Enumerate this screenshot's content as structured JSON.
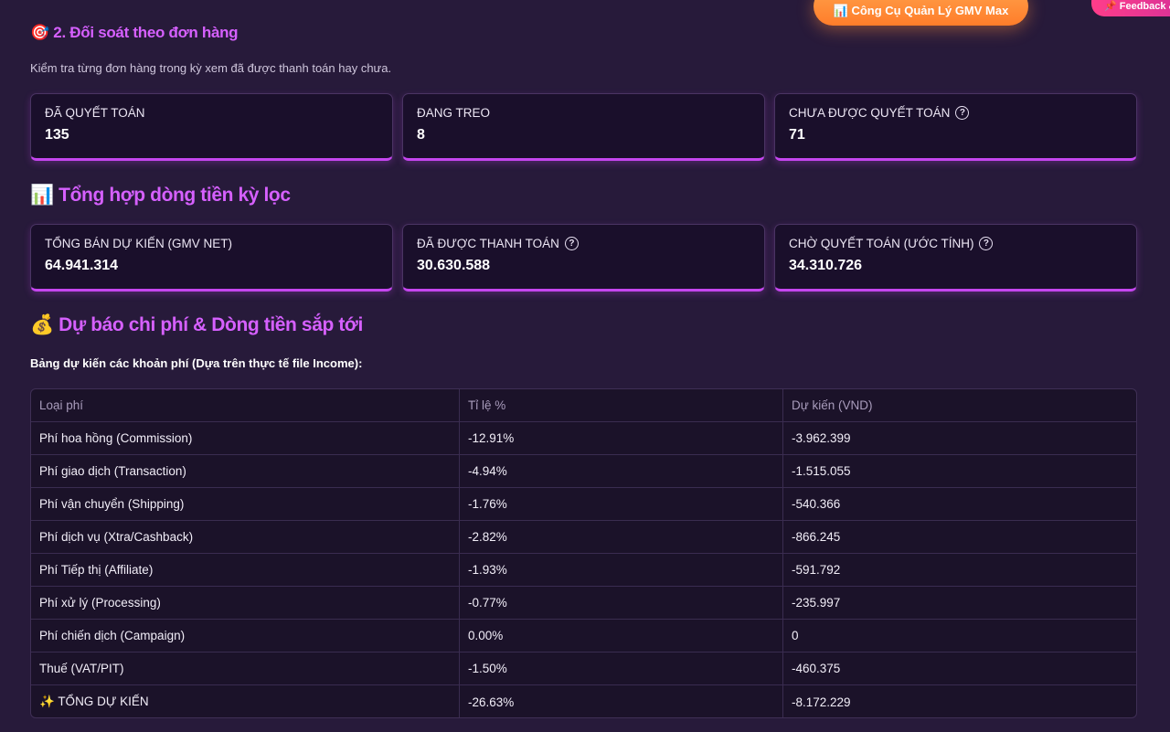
{
  "top_buttons": {
    "gmv_tool": "📊 Công Cụ Quản Lý GMV Max",
    "feedback": "📌 Feedback &"
  },
  "section1": {
    "title": "🎯 2. Đối soát theo đơn hàng",
    "description": "Kiểm tra từng đơn hàng trong kỳ xem đã được thanh toán hay chưa.",
    "cards": [
      {
        "label": "ĐÃ QUYẾT TOÁN",
        "value": "135",
        "help": false
      },
      {
        "label": "ĐANG TREO",
        "value": "8",
        "help": false
      },
      {
        "label": "CHƯA ĐƯỢC QUYẾT TOÁN",
        "value": "71",
        "help": true
      }
    ]
  },
  "section2": {
    "title": "📊 Tổng hợp dòng tiền kỳ lọc",
    "cards": [
      {
        "label": "TỔNG BÁN DỰ KIẾN (GMV NET)",
        "value": "64.941.314",
        "help": false
      },
      {
        "label": "ĐÃ ĐƯỢC THANH TOÁN",
        "value": "30.630.588",
        "help": true
      },
      {
        "label": "CHỜ QUYẾT TOÁN (ƯỚC TÍNH)",
        "value": "34.310.726",
        "help": true
      }
    ]
  },
  "section3": {
    "title": "💰 Dự báo chi phí & Dòng tiền sắp tới",
    "caption": "Bảng dự kiến các khoản phí (Dựa trên thực tế file Income):",
    "table": {
      "headers": [
        "Loại phí",
        "Tỉ lệ %",
        "Dự kiến (VND)"
      ],
      "rows": [
        [
          "Phí hoa hồng (Commission)",
          "-12.91%",
          "-3.962.399"
        ],
        [
          "Phí giao dịch (Transaction)",
          "-4.94%",
          "-1.515.055"
        ],
        [
          "Phí vận chuyển (Shipping)",
          "-1.76%",
          "-540.366"
        ],
        [
          "Phí dịch vụ (Xtra/Cashback)",
          "-2.82%",
          "-866.245"
        ],
        [
          "Phí Tiếp thị (Affiliate)",
          "-1.93%",
          "-591.792"
        ],
        [
          "Phí xử lý (Processing)",
          "-0.77%",
          "-235.997"
        ],
        [
          "Phí chiến dịch (Campaign)",
          "0.00%",
          "0"
        ],
        [
          "Thuế (VAT/PIT)",
          "-1.50%",
          "-460.375"
        ],
        [
          "✨  TỔNG DỰ KIẾN",
          "-26.63%",
          "-8.172.229"
        ]
      ]
    }
  }
}
